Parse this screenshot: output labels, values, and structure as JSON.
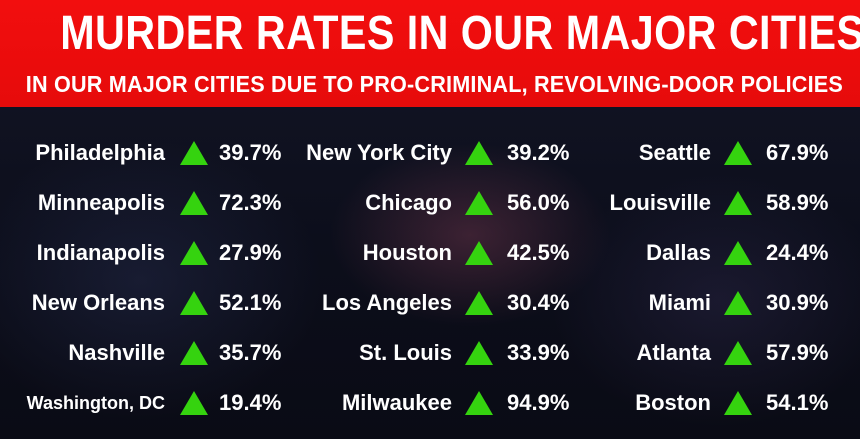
{
  "header": {
    "title": "MURDER RATES IN OUR MAJOR CITIES",
    "subtitle": "IN OUR MAJOR CITIES DUE TO PRO-CRIMINAL, REVOLVING-DOOR POLICIES"
  },
  "colors": {
    "banner": "#e60b0b",
    "increase_arrow": "#35d30f",
    "text": "#ffffff",
    "background": "#0d0f1c"
  },
  "columns": [
    {
      "cities": [
        {
          "name": "Philadelphia",
          "change": "39.7%",
          "icon": "up-triangle-icon"
        },
        {
          "name": "Minneapolis",
          "change": "72.3%",
          "icon": "up-triangle-icon"
        },
        {
          "name": "Indianapolis",
          "change": "27.9%",
          "icon": "up-triangle-icon"
        },
        {
          "name": "New Orleans",
          "change": "52.1%",
          "icon": "up-triangle-icon"
        },
        {
          "name": "Nashville",
          "change": "35.7%",
          "icon": "up-triangle-icon"
        },
        {
          "name": "Washington, DC",
          "change": "19.4%",
          "icon": "up-triangle-icon"
        }
      ]
    },
    {
      "cities": [
        {
          "name": "New York City",
          "change": "39.2%",
          "icon": "up-triangle-icon"
        },
        {
          "name": "Chicago",
          "change": "56.0%",
          "icon": "up-triangle-icon"
        },
        {
          "name": "Houston",
          "change": "42.5%",
          "icon": "up-triangle-icon"
        },
        {
          "name": "Los Angeles",
          "change": "30.4%",
          "icon": "up-triangle-icon"
        },
        {
          "name": "St. Louis",
          "change": "33.9%",
          "icon": "up-triangle-icon"
        },
        {
          "name": "Milwaukee",
          "change": "94.9%",
          "icon": "up-triangle-icon"
        }
      ]
    },
    {
      "cities": [
        {
          "name": "Seattle",
          "change": "67.9%",
          "icon": "up-triangle-icon"
        },
        {
          "name": "Louisville",
          "change": "58.9%",
          "icon": "up-triangle-icon"
        },
        {
          "name": "Dallas",
          "change": "24.4%",
          "icon": "up-triangle-icon"
        },
        {
          "name": "Miami",
          "change": "30.9%",
          "icon": "up-triangle-icon"
        },
        {
          "name": "Atlanta",
          "change": "57.9%",
          "icon": "up-triangle-icon"
        },
        {
          "name": "Boston",
          "change": "54.1%",
          "icon": "up-triangle-icon"
        }
      ]
    }
  ]
}
